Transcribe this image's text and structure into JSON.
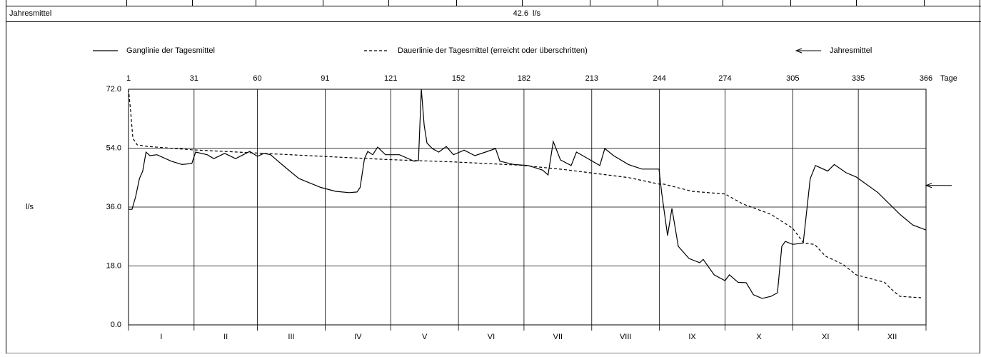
{
  "summary": {
    "label": "Jahresmittel",
    "value": 42.6,
    "unit": "l/s"
  },
  "chart_data": {
    "type": "line",
    "ylabel": "l/s",
    "xlabel": "Tage",
    "xlim": [
      1,
      366
    ],
    "xticks": [
      1,
      31,
      60,
      91,
      121,
      152,
      182,
      213,
      244,
      274,
      305,
      335,
      366
    ],
    "ylim": [
      0,
      72
    ],
    "yticks": [
      {
        "value": 0,
        "label": "0.0"
      },
      {
        "value": 18,
        "label": "18.0"
      },
      {
        "value": 36,
        "label": "36.0"
      },
      {
        "value": 54,
        "label": "54.0"
      },
      {
        "value": 72,
        "label": "72.0"
      }
    ],
    "grid": true,
    "month_labels": [
      "I",
      "II",
      "III",
      "IV",
      "V",
      "VI",
      "VII",
      "VIII",
      "IX",
      "X",
      "XI",
      "XII"
    ],
    "annual_mean": {
      "name": "Jahresmittel",
      "value": 42.6
    },
    "series": [
      {
        "name": "Ganglinie der Tagesmittel",
        "color": "#000000",
        "style": "solid",
        "x": [
          1,
          2.6,
          4.3,
          6,
          7.5,
          9,
          10.8,
          14,
          20.6,
          25.5,
          30,
          31.7,
          37,
          40,
          45,
          50,
          56.5,
          60,
          63,
          66,
          73,
          79,
          89,
          95.8,
          102,
          105.6,
          107,
          109,
          110.5,
          112.8,
          115,
          118.6,
          125,
          131.7,
          133.7,
          135,
          136.3,
          137.6,
          140,
          143,
          146.4,
          149.7,
          154.6,
          159.5,
          164.4,
          169,
          171,
          177.5,
          184,
          190.5,
          193,
          195.4,
          198.7,
          203.6,
          206,
          211.8,
          216.7,
          219,
          223,
          229.8,
          236,
          243.8,
          245,
          247.7,
          249.7,
          252.6,
          257.5,
          262.4,
          264,
          269,
          274,
          276,
          280,
          283.7,
          287,
          291,
          295,
          298,
          300,
          301.6,
          305,
          309.8,
          313,
          315.4,
          321,
          324,
          329.4,
          334,
          344,
          354,
          360,
          366
        ],
        "values": [
          35.3,
          35.3,
          39.3,
          44.7,
          47,
          52.8,
          51.7,
          52,
          50,
          49,
          49.3,
          52.8,
          52,
          50.8,
          52.4,
          50.8,
          53,
          51.5,
          52.4,
          52,
          48,
          44.7,
          42,
          40.8,
          40.4,
          40.6,
          42,
          50.8,
          53,
          52,
          54.3,
          52,
          52,
          50,
          50.2,
          72,
          61,
          55.6,
          53.9,
          52.8,
          54.5,
          52,
          53.4,
          51.7,
          52.8,
          53.9,
          50,
          49,
          48.7,
          47.3,
          45.8,
          56,
          50.4,
          48.7,
          52.8,
          50.6,
          48.7,
          53.9,
          51.7,
          49,
          47.6,
          47.6,
          40.4,
          27.3,
          35.6,
          24,
          20.3,
          19,
          20,
          15.3,
          13.5,
          15.3,
          13,
          12.9,
          9.2,
          8.1,
          8.7,
          9.8,
          24,
          25.5,
          24.6,
          25,
          44.7,
          48.7,
          47,
          49,
          46.5,
          45.2,
          40.4,
          33.8,
          30.5,
          29
        ]
      },
      {
        "name": "Dauerlinie der Tagesmittel (erreicht oder überschritten)",
        "color": "#000000",
        "style": "dashed",
        "x": [
          1,
          2,
          3,
          5,
          10,
          30,
          60,
          90,
          120,
          150,
          180,
          200,
          230,
          244,
          246,
          259,
          274,
          282,
          295,
          305,
          310,
          315,
          320,
          328,
          334,
          347,
          350,
          354,
          363.7
        ],
        "values": [
          72,
          65,
          57,
          55,
          54.5,
          53.5,
          52.5,
          51.5,
          50.5,
          49.8,
          48.8,
          47.5,
          45,
          43,
          43,
          40.8,
          40,
          37,
          33.8,
          29.5,
          25,
          24.6,
          21,
          18.5,
          15.3,
          13,
          11,
          8.7,
          8.3
        ]
      }
    ]
  }
}
